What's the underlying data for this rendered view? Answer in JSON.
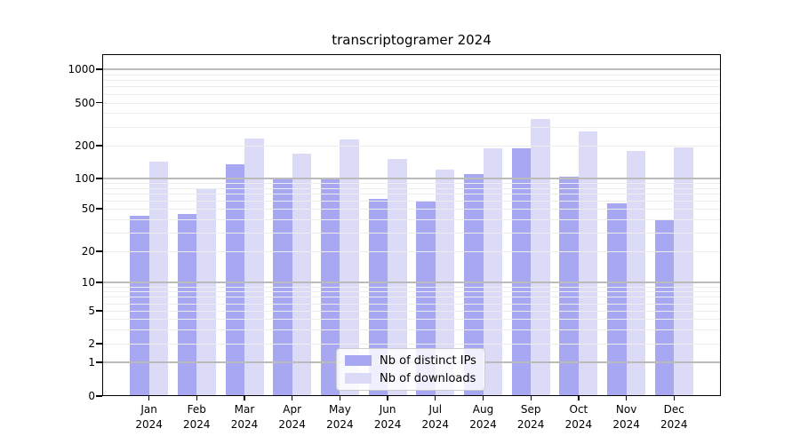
{
  "figure_title": "transcriptogramer 2024",
  "chart_data": {
    "type": "bar",
    "title": "transcriptogramer 2024",
    "categories": [
      "Jan",
      "Feb",
      "Mar",
      "Apr",
      "May",
      "Jun",
      "Jul",
      "Aug",
      "Sep",
      "Oct",
      "Nov",
      "Dec"
    ],
    "category_year": "2024",
    "series": [
      {
        "name": "Nb of distinct IPs",
        "color": "#a8a8f2",
        "values": [
          43,
          45,
          136,
          100,
          102,
          62,
          59,
          110,
          190,
          103,
          56,
          39
        ]
      },
      {
        "name": "Nb of downloads",
        "color": "#dbdbf8",
        "values": [
          143,
          79,
          233,
          168,
          227,
          151,
          121,
          188,
          355,
          270,
          179,
          192
        ]
      }
    ],
    "yscale": "symlog",
    "yticks": [
      1000,
      500,
      200,
      100,
      50,
      20,
      10,
      5,
      2,
      1,
      0
    ],
    "ylim": [
      0,
      1400
    ],
    "grid": true,
    "xlabel": "",
    "ylabel": "",
    "legend": {
      "position": "lower center",
      "labels": [
        "Nb of distinct IPs",
        "Nb of downloads"
      ]
    }
  },
  "colors": {
    "background": "#ffffff",
    "axis": "#000000",
    "major_grid": "#bbbbbb",
    "minor_grid": "#ededed",
    "bar_distinct_ips": "#a8a8f2",
    "bar_downloads": "#dbdbf8"
  }
}
